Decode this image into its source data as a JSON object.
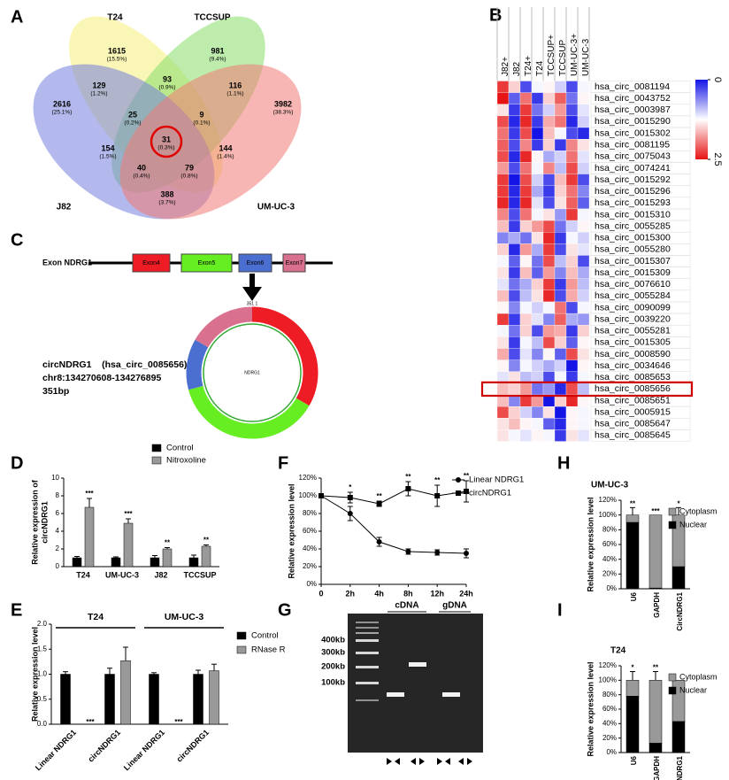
{
  "panel_labels": [
    "A",
    "B",
    "C",
    "D",
    "E",
    "F",
    "G",
    "H",
    "I"
  ],
  "venn": {
    "sets": [
      {
        "name": "T24",
        "color": "#f4ef7a",
        "label_color": "#a0952a"
      },
      {
        "name": "TCCSUP",
        "color": "#86dc6a",
        "label_color": "#2f9a24"
      },
      {
        "name": "J82",
        "color": "#7480dc",
        "label_color": "#3434b0"
      },
      {
        "name": "UM-UC-3",
        "color": "#f07a74",
        "label_color": "#e03030"
      }
    ],
    "regions": [
      {
        "count": 1615,
        "percent": "(15.5%)"
      },
      {
        "count": 981,
        "percent": "(9.4%)"
      },
      {
        "count": 2616,
        "percent": "(25.1%)"
      },
      {
        "count": 3982,
        "percent": "(38.3%)"
      },
      {
        "count": 93,
        "percent": "(0.9%)"
      },
      {
        "count": 129,
        "percent": "(1.2%)"
      },
      {
        "count": 116,
        "percent": "(1.1%)"
      },
      {
        "count": 25,
        "percent": "(0.2%)"
      },
      {
        "count": 9,
        "percent": "(0.1%)"
      },
      {
        "count": 154,
        "percent": "(1.5%)"
      },
      {
        "count": 31,
        "percent": "(0.3%)"
      },
      {
        "count": 144,
        "percent": "(1.4%)"
      },
      {
        "count": 40,
        "percent": "(0.4%)"
      },
      {
        "count": 79,
        "percent": "(0.8%)"
      },
      {
        "count": 388,
        "percent": "(3.7%)"
      }
    ]
  },
  "construct": {
    "gene_label": "Exon NDRG1",
    "exons": [
      {
        "name": "Exon4",
        "color": "#ee1c24"
      },
      {
        "name": "Exon5",
        "color": "#66ee22"
      },
      {
        "name": "Exon6",
        "color": "#4a6fd0"
      },
      {
        "name": "Exon7",
        "color": "#d8708e"
      }
    ],
    "circle_label": "NDRG1",
    "junction_label": "351 1",
    "info": [
      "circNDRG1    (hsa_circ_0085656)",
      "chr8:134270608-134276895",
      "351bp"
    ]
  },
  "gel": {
    "lanes": [
      "cDNA",
      "gDNA"
    ],
    "markers": [
      "400kb",
      "300kb",
      "200kb",
      "100kb"
    ]
  },
  "chart_data": [
    {
      "type": "heatmap",
      "columns": [
        "J82+",
        "J82",
        "T24+",
        "T24",
        "TCCSUP+",
        "TCCSUP",
        "UM-UC-3+",
        "UM-UC-3"
      ],
      "rows": [
        "hsa_circ_0081194",
        "hsa_circ_0043752",
        "hsa_circ_0003987",
        "hsa_circ_0015290",
        "hsa_circ_0015302",
        "hsa_circ_0081195",
        "hsa_circ_0075043",
        "hsa_circ_0074241",
        "hsa_circ_0015292",
        "hsa_circ_0015296",
        "hsa_circ_0015293",
        "hsa_circ_0015310",
        "hsa_circ_0055285",
        "hsa_circ_0015300",
        "hsa_circ_0055280",
        "hsa_circ_0015307",
        "hsa_circ_0015309",
        "hsa_circ_0076610",
        "hsa_circ_0055284",
        "hsa_circ_0090099",
        "hsa_circ_0039220",
        "hsa_circ_0055281",
        "hsa_circ_0015305",
        "hsa_circ_0008590",
        "hsa_circ_0034646",
        "hsa_circ_0085653",
        "hsa_circ_0085656",
        "hsa_circ_0085651",
        "hsa_circ_0005915",
        "hsa_circ_0085647",
        "hsa_circ_0085645"
      ],
      "values": [
        [
          2.3,
          1.5,
          0.3,
          1.2,
          1.3,
          1.0,
          0.3,
          1.2
        ],
        [
          2.5,
          0.4,
          2.0,
          0.2,
          1.5,
          2.1,
          0.5,
          1.3
        ],
        [
          1.4,
          0.2,
          2.3,
          0.5,
          1.0,
          1.8,
          0.3,
          1.1
        ],
        [
          2.2,
          0.1,
          2.4,
          0.2,
          1.7,
          2.0,
          0.1,
          1.0
        ],
        [
          2.0,
          0.2,
          2.2,
          0.0,
          1.6,
          1.2,
          0.3,
          0.1
        ],
        [
          2.1,
          0.3,
          1.9,
          0.2,
          1.5,
          0.2,
          1.9,
          1.4
        ],
        [
          2.2,
          0.1,
          2.4,
          1.3,
          0.8,
          1.0,
          2.0,
          1.1
        ],
        [
          1.8,
          0.3,
          2.0,
          1.2,
          1.9,
          0.9,
          2.2,
          1.0
        ],
        [
          2.3,
          0.0,
          2.2,
          1.0,
          0.3,
          1.6,
          2.3,
          0.3
        ],
        [
          2.3,
          0.1,
          2.3,
          0.8,
          0.2,
          1.5,
          2.0,
          0.6
        ],
        [
          2.4,
          0.1,
          2.4,
          1.1,
          0.3,
          1.4,
          2.1,
          0.4
        ],
        [
          1.9,
          0.3,
          2.0,
          1.2,
          1.4,
          0.7,
          2.3,
          1.2
        ],
        [
          1.6,
          0.2,
          1.5,
          1.8,
          2.2,
          0.5,
          1.0,
          1.3
        ],
        [
          0.6,
          0.8,
          0.5,
          1.4,
          2.4,
          0.2,
          1.2,
          1.0
        ],
        [
          1.5,
          0.1,
          1.8,
          0.8,
          2.3,
          0.3,
          1.4,
          1.1
        ],
        [
          1.2,
          0.4,
          1.3,
          0.5,
          2.2,
          0.9,
          1.5,
          0.3
        ],
        [
          1.4,
          0.2,
          1.6,
          0.4,
          1.8,
          0.6,
          1.6,
          0.8
        ],
        [
          1.1,
          0.5,
          0.8,
          1.5,
          2.3,
          0.2,
          1.8,
          0.9
        ],
        [
          1.6,
          0.3,
          0.9,
          1.4,
          2.4,
          0.3,
          1.7,
          1.0
        ],
        [
          1.3,
          0.6,
          1.2,
          1.0,
          1.2,
          2.0,
          0.3,
          1.2
        ],
        [
          2.3,
          0.2,
          1.5,
          1.1,
          0.6,
          2.1,
          0.8,
          0.7
        ],
        [
          1.2,
          0.5,
          1.5,
          0.3,
          1.8,
          1.7,
          0.2,
          1.5
        ],
        [
          1.4,
          0.2,
          1.2,
          0.9,
          2.2,
          1.5,
          0.4,
          1.3
        ],
        [
          1.7,
          0.3,
          1.1,
          0.6,
          1.3,
          0.4,
          2.2,
          1.4
        ],
        [
          1.3,
          0.6,
          1.2,
          1.0,
          0.8,
          1.0,
          0.0,
          1.3
        ],
        [
          1.1,
          1.4,
          0.9,
          1.0,
          0.3,
          1.2,
          0.2,
          1.2
        ],
        [
          1.6,
          1.5,
          1.8,
          0.5,
          0.7,
          0.1,
          2.2,
          0.9
        ],
        [
          1.6,
          0.6,
          2.3,
          1.8,
          0.0,
          1.5,
          2.4,
          1.3
        ],
        [
          2.2,
          1.5,
          1.0,
          0.6,
          1.4,
          0.0,
          1.3,
          1.2
        ],
        [
          1.4,
          1.6,
          1.3,
          1.2,
          0.4,
          0.1,
          1.3,
          1.2
        ],
        [
          1.4,
          1.2,
          1.1,
          1.3,
          1.2,
          0.2,
          1.4,
          1.1
        ]
      ],
      "zlim": [
        0,
        2.5
      ],
      "zticks": [
        0,
        2.5
      ],
      "low_color": "#1414e6",
      "mid_color": "#ffffff",
      "high_color": "#e61414",
      "highlight_row": 26,
      "highlight_color": "#d00000"
    },
    {
      "type": "bar",
      "ylabel": [
        "Relative expression of",
        "circNDRG1"
      ],
      "categories": [
        "T24",
        "UM-UC-3",
        "J82",
        "TCCSUP"
      ],
      "series": [
        {
          "name": "Control",
          "color": "#000000",
          "values": [
            1,
            1,
            1,
            1
          ],
          "errors": [
            0.15,
            0.1,
            0.25,
            0.3
          ]
        },
        {
          "name": "Nitroxoline",
          "color": "#999999",
          "values": [
            6.7,
            4.9,
            2.0,
            2.3
          ],
          "errors": [
            1.0,
            0.5,
            0.15,
            0.15
          ],
          "significance": [
            "***",
            "***",
            "**",
            "**"
          ]
        }
      ],
      "ylim": [
        0,
        10
      ],
      "yticks": [
        0,
        2,
        4,
        6,
        8,
        10
      ]
    },
    {
      "type": "bar",
      "ylabel": [
        "Relative expression level"
      ],
      "categories": [
        "Linear NDRG1",
        "circNDRG1",
        "Linear NDRG1",
        "circNDRG1"
      ],
      "group_labels": [
        "T24",
        "UM-UC-3"
      ],
      "series": [
        {
          "name": "Control",
          "color": "#000000",
          "values": [
            1,
            1,
            1,
            1
          ],
          "errors": [
            0.05,
            0.12,
            0.03,
            0.08
          ]
        },
        {
          "name": "RNase R",
          "color": "#999999",
          "values": [
            0,
            1.27,
            0,
            1.07
          ],
          "errors": [
            0,
            0.27,
            0,
            0.13
          ],
          "significance": [
            "***",
            null,
            "***",
            null
          ]
        }
      ],
      "ylim": [
        0,
        2
      ],
      "yticks": [
        {
          "value": 0,
          "label": "0.0"
        },
        0.5,
        {
          "value": 1,
          "label": "1.0"
        },
        1.5,
        {
          "value": 2,
          "label": "2.0"
        }
      ]
    },
    {
      "type": "line",
      "ylabel": [
        "Relative expression level"
      ],
      "categories": [
        "0",
        "2h",
        "4h",
        "8h",
        "12h",
        "24h"
      ],
      "series": [
        {
          "name": "Linear NDRG1",
          "color": "#000000",
          "marker": "circle",
          "values": [
            100,
            80,
            48,
            37,
            36,
            35
          ],
          "errors": [
            0,
            8,
            5,
            3,
            3,
            5
          ]
        },
        {
          "name": "circNDRG1",
          "color": "#000000",
          "marker": "square",
          "values": [
            100,
            98,
            91,
            108,
            100,
            105
          ],
          "errors": [
            0,
            6,
            3,
            8,
            12,
            12
          ],
          "significance": [
            null,
            "*",
            "**",
            "**",
            "**",
            "**"
          ]
        }
      ],
      "ylim": [
        0,
        120
      ],
      "yticks": [
        {
          "value": 0,
          "label": "0%"
        },
        {
          "value": 20,
          "label": "20%"
        },
        {
          "value": 40,
          "label": "40%"
        },
        {
          "value": 60,
          "label": "60%"
        },
        {
          "value": 80,
          "label": "80%"
        },
        {
          "value": 100,
          "label": "100%"
        },
        {
          "value": 120,
          "label": "120%"
        }
      ]
    },
    {
      "type": "stacked_bar",
      "title": "UM-UC-3",
      "ylabel": [
        "Relative expression level"
      ],
      "categories": [
        "U6",
        "GAPDH",
        "CircNDRG1"
      ],
      "series": [
        {
          "name": "Nuclear",
          "color": "#000000",
          "values": [
            90,
            1,
            30
          ],
          "errors": [
            8,
            0,
            10
          ]
        },
        {
          "name": "Cytoplasm",
          "color": "#999999",
          "values": [
            10,
            99,
            70
          ],
          "errors": [
            10,
            0,
            10
          ]
        }
      ],
      "significance": [
        "**",
        "***",
        "*"
      ],
      "ylim": [
        0,
        120
      ],
      "yticks": [
        {
          "value": 0,
          "label": "0%"
        },
        {
          "value": 20,
          "label": "20%"
        },
        {
          "value": 40,
          "label": "40%"
        },
        {
          "value": 60,
          "label": "60%"
        },
        {
          "value": 80,
          "label": "80%"
        },
        {
          "value": 100,
          "label": "100%"
        },
        {
          "value": 120,
          "label": "120%"
        }
      ]
    },
    {
      "type": "stacked_bar",
      "title": "T24",
      "ylabel": [
        "Relative expression level"
      ],
      "categories": [
        "U6",
        "GAPDH",
        "CircNDRG1"
      ],
      "series": [
        {
          "name": "Nuclear",
          "color": "#000000",
          "values": [
            78,
            13,
            43
          ],
          "errors": [
            10,
            10,
            22
          ]
        },
        {
          "name": "Cytoplasm",
          "color": "#999999",
          "values": [
            22,
            87,
            57
          ],
          "errors": [
            12,
            12,
            0
          ]
        }
      ],
      "significance": [
        "*",
        "**",
        null
      ],
      "ylim": [
        0,
        120
      ],
      "yticks": [
        {
          "value": 0,
          "label": "0%"
        },
        {
          "value": 20,
          "label": "20%"
        },
        {
          "value": 40,
          "label": "40%"
        },
        {
          "value": 60,
          "label": "60%"
        },
        {
          "value": 80,
          "label": "80%"
        },
        {
          "value": 100,
          "label": "100%"
        },
        {
          "value": 120,
          "label": "120%"
        }
      ]
    }
  ]
}
